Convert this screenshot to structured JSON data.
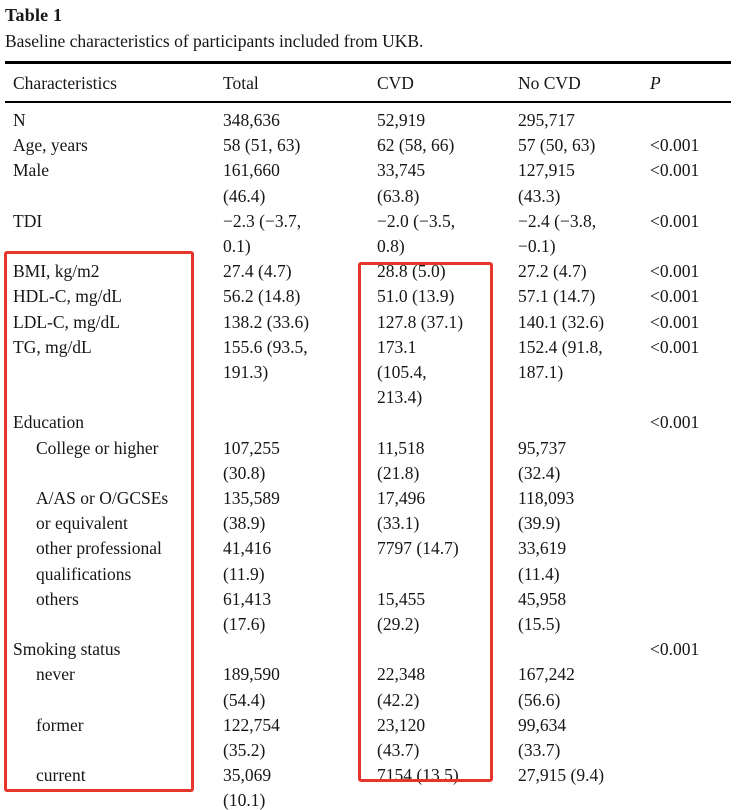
{
  "table": {
    "label": "Table 1",
    "caption": "Baseline characteristics of participants included from UKB.",
    "columns": [
      "Characteristics",
      "Total",
      "CVD",
      "No CVD",
      "P"
    ],
    "rows": [
      {
        "label": "N",
        "indent": false,
        "total": "348,636",
        "cvd": "52,919",
        "no_cvd": "295,717",
        "p": ""
      },
      {
        "label": "Age, years",
        "indent": false,
        "total": "58 (51, 63)",
        "cvd": "62 (58, 66)",
        "no_cvd": "57 (50, 63)",
        "p": "<0.001"
      },
      {
        "label": "Male",
        "indent": false,
        "total": "161,660\n(46.4)",
        "cvd": "33,745\n(63.8)",
        "no_cvd": "127,915\n(43.3)",
        "p": "<0.001"
      },
      {
        "label": "TDI",
        "indent": false,
        "total": "−2.3 (−3.7,\n0.1)",
        "cvd": "−2.0 (−3.5,\n0.8)",
        "no_cvd": "−2.4 (−3.8,\n−0.1)",
        "p": "<0.001"
      },
      {
        "label": "BMI, kg/m2",
        "indent": false,
        "total": "27.4 (4.7)",
        "cvd": "28.8 (5.0)",
        "no_cvd": "27.2 (4.7)",
        "p": "<0.001"
      },
      {
        "label": "HDL-C, mg/dL",
        "indent": false,
        "total": "56.2 (14.8)",
        "cvd": "51.0 (13.9)",
        "no_cvd": "57.1 (14.7)",
        "p": "<0.001"
      },
      {
        "label": "LDL-C, mg/dL",
        "indent": false,
        "total": "138.2 (33.6)",
        "cvd": "127.8 (37.1)",
        "no_cvd": "140.1 (32.6)",
        "p": "<0.001"
      },
      {
        "label": "TG, mg/dL",
        "indent": false,
        "total": "155.6 (93.5,\n191.3)",
        "cvd": "173.1\n(105.4,\n213.4)",
        "no_cvd": "152.4 (91.8,\n187.1)",
        "p": "<0.001"
      },
      {
        "label": "Education",
        "indent": false,
        "total": "",
        "cvd": "",
        "no_cvd": "",
        "p": "<0.001"
      },
      {
        "label": "College or higher",
        "indent": true,
        "total": "107,255\n(30.8)",
        "cvd": "11,518\n(21.8)",
        "no_cvd": "95,737\n(32.4)",
        "p": ""
      },
      {
        "label": "A/AS or O/GCSEs\nor equivalent",
        "indent": true,
        "total": "135,589\n(38.9)",
        "cvd": "17,496\n(33.1)",
        "no_cvd": "118,093\n(39.9)",
        "p": ""
      },
      {
        "label": "other professional\nqualifications",
        "indent": true,
        "total": "41,416\n(11.9)",
        "cvd": "7797 (14.7)",
        "no_cvd": "33,619\n(11.4)",
        "p": ""
      },
      {
        "label": "others",
        "indent": true,
        "total": "61,413\n(17.6)",
        "cvd": "15,455\n(29.2)",
        "no_cvd": "45,958\n(15.5)",
        "p": ""
      },
      {
        "label": "Smoking status",
        "indent": false,
        "total": "",
        "cvd": "",
        "no_cvd": "",
        "p": "<0.001"
      },
      {
        "label": "never",
        "indent": true,
        "total": "189,590\n(54.4)",
        "cvd": "22,348\n(42.2)",
        "no_cvd": "167,242\n(56.6)",
        "p": ""
      },
      {
        "label": "former",
        "indent": true,
        "total": "122,754\n(35.2)",
        "cvd": "23,120\n(43.7)",
        "no_cvd": "99,634\n(33.7)",
        "p": ""
      },
      {
        "label": "current",
        "indent": true,
        "total": "35,069\n(10.1)",
        "cvd": "7154 (13.5)",
        "no_cvd": "27,915 (9.4)",
        "p": ""
      }
    ]
  },
  "annotations": {
    "highlight_color": "#e8352c",
    "boxes": [
      {
        "name": "characteristics-column-highlight"
      },
      {
        "name": "cvd-column-highlight"
      }
    ]
  }
}
